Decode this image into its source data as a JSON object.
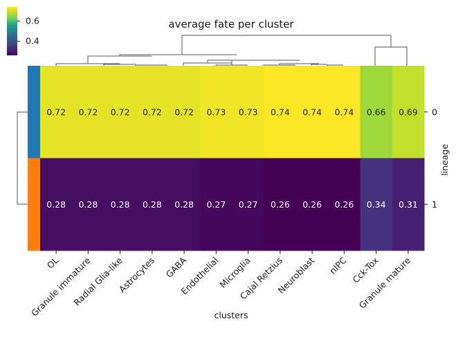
{
  "chart_data": {
    "type": "heatmap",
    "title": "average fate per cluster",
    "xlabel": "clusters",
    "ylabel": "lineage",
    "colormap": "viridis",
    "vmin": 0.26,
    "vmax": 0.74,
    "colorbar_ticks": [
      {
        "value": 0.6,
        "label": "0.6"
      },
      {
        "value": 0.4,
        "label": "0.4"
      }
    ],
    "row_colors": [
      "#1f77b4",
      "#ff7f0e"
    ],
    "categories": [
      "OL",
      "Granule immature",
      "Radial Glia-like",
      "Astrocytes",
      "GABA",
      "Endothelial",
      "Microglia",
      "Cajal Retzius",
      "Neuroblast",
      "nIPC",
      "Cck-Tox",
      "Granule mature"
    ],
    "rows": [
      "0",
      "1"
    ],
    "values": [
      [
        0.72,
        0.72,
        0.72,
        0.72,
        0.72,
        0.73,
        0.73,
        0.74,
        0.74,
        0.74,
        0.66,
        0.69
      ],
      [
        0.28,
        0.28,
        0.28,
        0.28,
        0.28,
        0.27,
        0.27,
        0.26,
        0.26,
        0.26,
        0.34,
        0.31
      ]
    ],
    "value_labels": [
      [
        "0.72",
        "0.72",
        "0.72",
        "0.72",
        "0.72",
        "0.73",
        "0.73",
        "0.74",
        "0.74",
        "0.74",
        "0.66",
        "0.69"
      ],
      [
        "0.28",
        "0.28",
        "0.28",
        "0.28",
        "0.28",
        "0.27",
        "0.27",
        "0.26",
        "0.26",
        "0.26",
        "0.34",
        "0.31"
      ]
    ]
  }
}
